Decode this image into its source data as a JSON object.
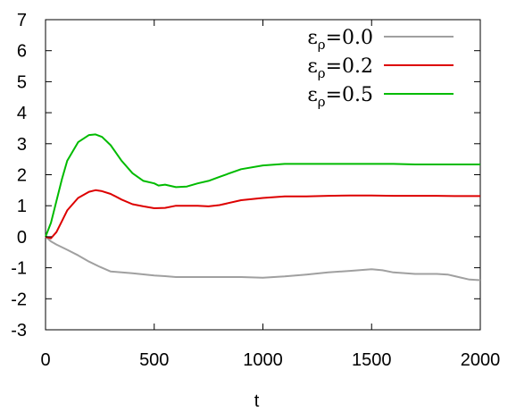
{
  "chart_data": {
    "type": "line",
    "title": "",
    "xlabel": "t",
    "ylabel": "",
    "xlim": [
      0,
      2000
    ],
    "ylim": [
      -3,
      7
    ],
    "xticks": [
      0,
      500,
      1000,
      1500,
      2000
    ],
    "yticks": [
      -3,
      -2,
      -1,
      0,
      1,
      2,
      3,
      4,
      5,
      6,
      7
    ],
    "xtick_labels": [
      "0",
      "500",
      "1000",
      "1500",
      "2000"
    ],
    "ytick_labels": [
      "-3",
      "-2",
      "-1",
      "0",
      "1",
      "2",
      "3",
      "4",
      "5",
      "6",
      "7"
    ],
    "grid": false,
    "legend_position": "top-right",
    "series": [
      {
        "name_main": "ε",
        "name_sub": "ρ",
        "name_value": "=0.0",
        "color": "#a0a0a0",
        "x": [
          0,
          25,
          50,
          100,
          150,
          200,
          250,
          300,
          400,
          500,
          550,
          600,
          700,
          800,
          900,
          1000,
          1100,
          1200,
          1300,
          1400,
          1500,
          1550,
          1600,
          1700,
          1800,
          1850,
          1900,
          1950,
          2000
        ],
        "y": [
          0,
          -0.15,
          -0.25,
          -0.42,
          -0.6,
          -0.8,
          -0.97,
          -1.12,
          -1.18,
          -1.25,
          -1.27,
          -1.3,
          -1.3,
          -1.3,
          -1.3,
          -1.32,
          -1.28,
          -1.22,
          -1.15,
          -1.1,
          -1.05,
          -1.08,
          -1.15,
          -1.2,
          -1.2,
          -1.22,
          -1.3,
          -1.38,
          -1.4
        ]
      },
      {
        "name_main": "ε",
        "name_sub": "ρ",
        "name_value": "=0.2",
        "color": "#dd0000",
        "x": [
          0,
          25,
          50,
          75,
          100,
          150,
          200,
          230,
          260,
          300,
          350,
          400,
          450,
          500,
          550,
          600,
          650,
          700,
          750,
          800,
          900,
          1000,
          1100,
          1200,
          1300,
          1400,
          1500,
          1600,
          1700,
          1800,
          1900,
          2000
        ],
        "y": [
          0,
          -0.05,
          0.15,
          0.5,
          0.85,
          1.25,
          1.45,
          1.5,
          1.47,
          1.38,
          1.2,
          1.05,
          0.98,
          0.92,
          0.93,
          1.0,
          1.0,
          1.0,
          0.98,
          1.02,
          1.18,
          1.25,
          1.3,
          1.3,
          1.32,
          1.33,
          1.33,
          1.32,
          1.32,
          1.32,
          1.31,
          1.31
        ]
      },
      {
        "name_main": "ε",
        "name_sub": "ρ",
        "name_value": "=0.5",
        "color": "#00bb00",
        "x": [
          0,
          25,
          50,
          75,
          100,
          150,
          200,
          230,
          260,
          300,
          350,
          400,
          450,
          500,
          520,
          550,
          600,
          650,
          700,
          750,
          800,
          900,
          1000,
          1100,
          1200,
          1300,
          1400,
          1500,
          1600,
          1700,
          1800,
          1900,
          2000
        ],
        "y": [
          0,
          0.45,
          1.15,
          1.85,
          2.45,
          3.05,
          3.28,
          3.3,
          3.22,
          2.95,
          2.45,
          2.05,
          1.8,
          1.72,
          1.65,
          1.68,
          1.6,
          1.62,
          1.72,
          1.8,
          1.93,
          2.18,
          2.3,
          2.35,
          2.35,
          2.35,
          2.35,
          2.35,
          2.35,
          2.33,
          2.33,
          2.33,
          2.33
        ]
      }
    ]
  }
}
